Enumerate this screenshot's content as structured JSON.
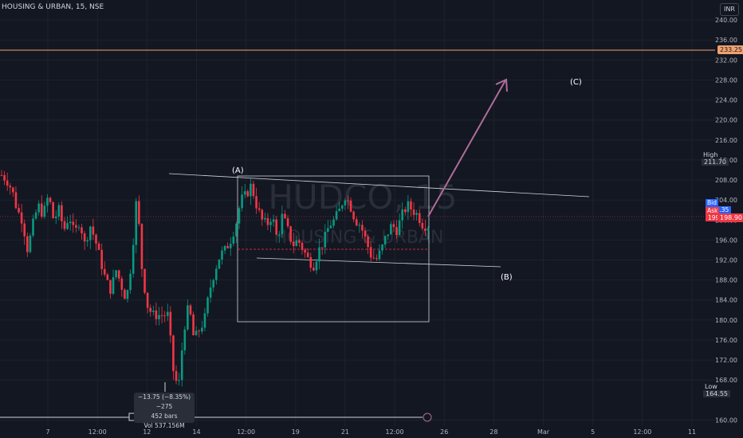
{
  "header": {
    "symbol_line": "HOUSING & URBAN, 15, NSE"
  },
  "currency": "INR",
  "watermark": {
    "ticker": "HUDCO, 15",
    "name": "HOUSING & URBAN"
  },
  "annotations": {
    "a": "(A)",
    "b": "(B)",
    "c": "(C)"
  },
  "price_tags": {
    "resistance": "233.25",
    "high_label": "High",
    "high_value": "211.70",
    "bid_label": "Bid",
    "bid_value": "199.35",
    "ask_label": "Ask",
    "ask_value": "199.35",
    "last_value": "198.90",
    "low_label": "Low",
    "low_value": "164.55"
  },
  "measure": {
    "line1": "−13.75 (−8.35%) −275",
    "line2": "452 bars",
    "line3": "Vol 537.156M"
  },
  "chart_data": {
    "type": "candlestick",
    "instrument": "HOUSING & URBAN",
    "exchange": "NSE",
    "timeframe": "15",
    "y_ticks": [
      240,
      236,
      232,
      228,
      224,
      220,
      216,
      212,
      208,
      204,
      200,
      196,
      192,
      188,
      184,
      180,
      176,
      172,
      168,
      160
    ],
    "x_ticks": [
      "7",
      "12:00",
      "12",
      "14",
      "12:00",
      "19",
      "21",
      "12:00",
      "26",
      "28",
      "Mar",
      "5",
      "12:00",
      "11"
    ],
    "ylim": [
      158,
      244
    ],
    "levels": {
      "resistance": 233.25,
      "high": 211.7,
      "low": 164.55,
      "bid": 199.35,
      "ask": 199.35,
      "last": 198.9
    },
    "price_path": [
      209,
      208,
      206,
      202,
      200,
      194,
      199,
      203,
      201,
      205,
      200,
      202,
      198,
      201,
      197,
      200,
      195,
      199,
      196,
      192,
      188,
      186,
      190,
      187,
      184,
      192,
      205,
      190,
      183,
      181,
      181,
      181,
      181,
      170,
      166,
      178,
      183,
      176,
      178,
      180,
      186,
      190,
      193,
      194,
      196,
      199,
      204,
      205,
      207,
      203,
      200,
      199,
      201,
      196,
      201,
      198,
      195,
      196,
      194,
      192,
      191,
      194,
      196,
      199,
      200,
      202,
      205,
      203,
      200,
      199,
      196,
      193,
      192,
      194,
      197,
      199,
      198,
      201,
      203,
      202,
      201,
      199,
      198.9
    ],
    "colors": {
      "up": "#089981",
      "down": "#f23645",
      "background": "#131722",
      "projection": "#b06c9a",
      "resistance": "#f0a070"
    }
  }
}
